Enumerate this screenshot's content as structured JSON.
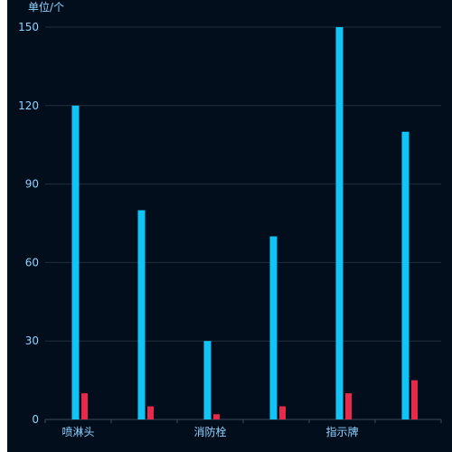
{
  "chart_data": {
    "type": "bar",
    "ylabel": "单位/个",
    "ylim": [
      0,
      150
    ],
    "yticks": [
      0,
      30,
      60,
      90,
      120,
      150
    ],
    "categories": [
      "喷淋头",
      "",
      "消防栓",
      "",
      "指示牌",
      ""
    ],
    "series": [
      {
        "name": "",
        "color": "#12c3f6",
        "values": [
          120,
          80,
          30,
          70,
          150,
          110
        ]
      },
      {
        "name": "",
        "color": "#e8294a",
        "values": [
          10,
          5,
          2,
          5,
          10,
          15
        ]
      }
    ],
    "grid": true,
    "legend": false
  }
}
